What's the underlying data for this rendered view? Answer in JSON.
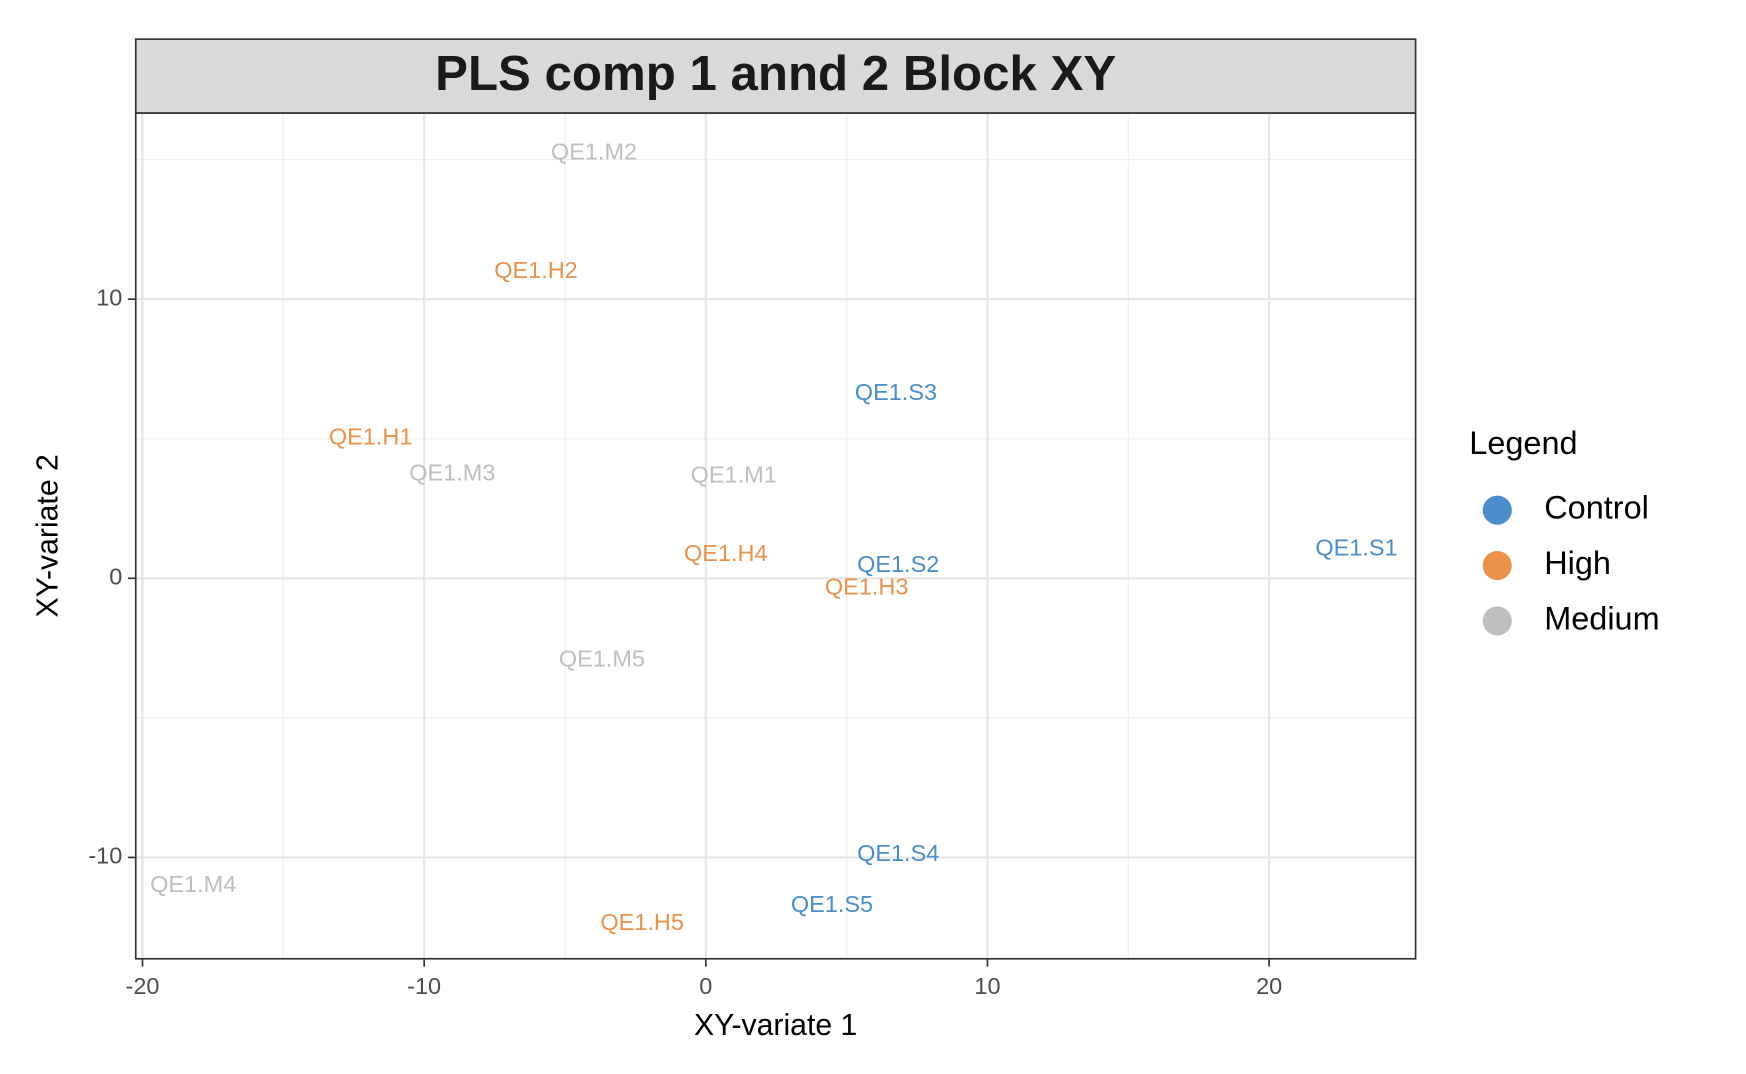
{
  "chart_data": {
    "type": "scatter",
    "title": "PLS comp 1 annd 2 Block XY",
    "x_label": "XY-variate 1",
    "y_label": "XY-variate 2",
    "legend_title": "Legend",
    "xlim": [
      -20.24,
      25.2
    ],
    "ylim": [
      -13.63,
      16.67
    ],
    "xticks": [
      -20,
      -10,
      0,
      10,
      20
    ],
    "yticks": [
      -10,
      0,
      10
    ],
    "xminorticks": [
      -15,
      -5,
      5,
      15
    ],
    "yminorticks": [
      -5,
      5,
      15
    ],
    "grid": true,
    "legend": "right",
    "series": [
      {
        "name": "Control",
        "color": "#4b8dca",
        "labels": [
          "QE1.S1",
          "QE1.S2",
          "QE1.S3",
          "QE1.S4",
          "QE1.S5"
        ],
        "x": [
          23.1,
          6.83,
          6.75,
          6.83,
          4.48
        ],
        "values": [
          1.04,
          0.44,
          6.61,
          -9.9,
          -11.74
        ]
      },
      {
        "name": "High",
        "color": "#eb914a",
        "labels": [
          "QE1.H1",
          "QE1.H2",
          "QE1.H3",
          "QE1.H4",
          "QE1.H5"
        ],
        "x": [
          -11.9,
          -6.03,
          5.71,
          0.71,
          -2.26
        ],
        "values": [
          5.01,
          10.98,
          -0.36,
          0.84,
          -12.38
        ]
      },
      {
        "name": "Medium",
        "color": "#bebebe",
        "labels": [
          "QE1.M1",
          "QE1.M2",
          "QE1.M3",
          "QE1.M4",
          "QE1.M5"
        ],
        "x": [
          0.99,
          -3.97,
          -9.0,
          -18.2,
          -3.69
        ],
        "values": [
          3.65,
          15.23,
          3.73,
          -11.02,
          -2.93
        ]
      }
    ]
  }
}
